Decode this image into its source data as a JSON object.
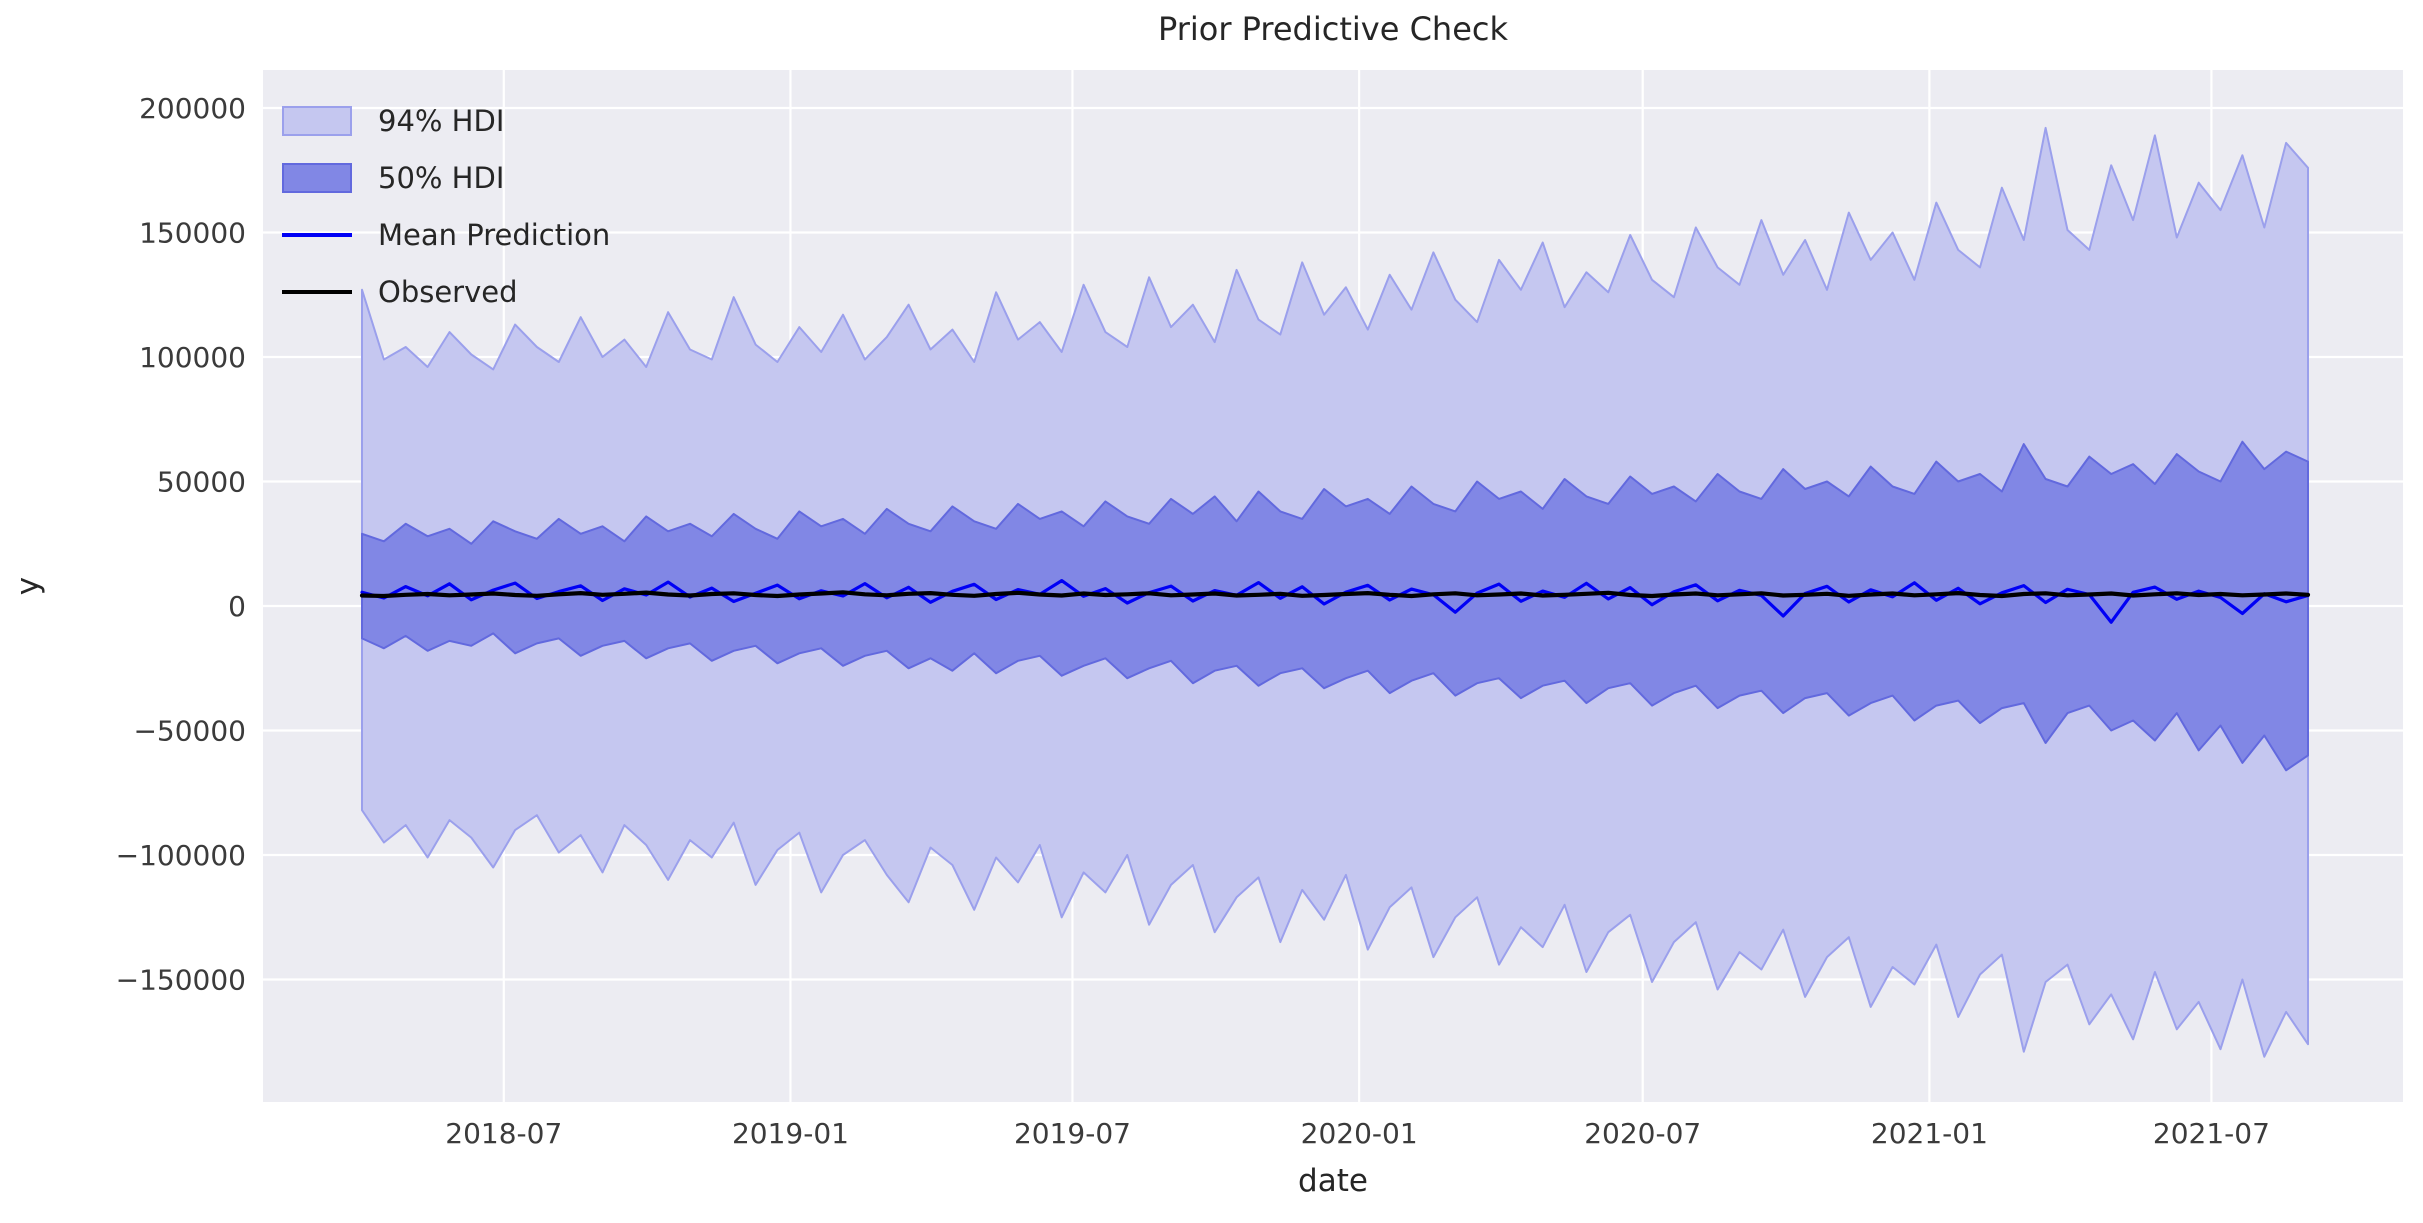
{
  "title": "Prior Predictive Check",
  "axes": {
    "xlabel": "date",
    "ylabel": "y"
  },
  "colors": {
    "figure_bg": "#ffffff",
    "axes_bg": "#ececf2",
    "grid": "#ffffff",
    "hdi94_fill": "#c5c7f0",
    "hdi94_edge": "#9ba0ec",
    "hdi50_fill": "#8187e5",
    "hdi50_edge": "#6269de",
    "mean_line": "#0000f5",
    "observed_line": "#000000",
    "tick_text": "#3b3b3b",
    "label_text": "#262626"
  },
  "legend": {
    "items": [
      {
        "label": "94% HDI",
        "type": "patch",
        "fill": "#c5c7f0",
        "edge": "#9ba0ec"
      },
      {
        "label": "50% HDI",
        "type": "patch",
        "fill": "#8187e5",
        "edge": "#6269de"
      },
      {
        "label": "Mean Prediction",
        "type": "line",
        "color": "#0000f5"
      },
      {
        "label": "Observed",
        "type": "line",
        "color": "#000000"
      }
    ]
  },
  "chart_data": {
    "type": "area",
    "title": "Prior Predictive Check",
    "xlabel": "date",
    "ylabel": "y",
    "grid": true,
    "legend_position": "upper left",
    "x_start": "2018-04-01",
    "x_end": "2021-09-01",
    "x_total_days": 1249,
    "n_points": 90,
    "ylim": [
      -199000,
      215000
    ],
    "yticks": [
      {
        "label": "200000",
        "value": 200000
      },
      {
        "label": "150000",
        "value": 150000
      },
      {
        "label": "100000",
        "value": 100000
      },
      {
        "label": "50000",
        "value": 50000
      },
      {
        "label": "0",
        "value": 0
      },
      {
        "label": "−50000",
        "value": -50000
      },
      {
        "label": "−100000",
        "value": -100000
      },
      {
        "label": "−150000",
        "value": -150000
      }
    ],
    "xticks": [
      {
        "label": "2018-07",
        "day": 91
      },
      {
        "label": "2019-01",
        "day": 275
      },
      {
        "label": "2019-07",
        "day": 456
      },
      {
        "label": "2020-01",
        "day": 640
      },
      {
        "label": "2020-07",
        "day": 822
      },
      {
        "label": "2021-01",
        "day": 1006
      },
      {
        "label": "2021-07",
        "day": 1187
      }
    ],
    "series": [
      {
        "name": "hdi_94_upper",
        "values": [
          127000,
          99000,
          104000,
          96000,
          110000,
          101000,
          95000,
          113000,
          104000,
          98000,
          116000,
          100000,
          107000,
          96000,
          118000,
          103000,
          99000,
          124000,
          105000,
          98000,
          112000,
          102000,
          117000,
          99000,
          108000,
          121000,
          103000,
          111000,
          98000,
          126000,
          107000,
          114000,
          102000,
          129000,
          110000,
          104000,
          132000,
          112000,
          121000,
          106000,
          135000,
          115000,
          109000,
          138000,
          117000,
          128000,
          111000,
          133000,
          119000,
          142000,
          123000,
          114000,
          139000,
          127000,
          146000,
          120000,
          134000,
          126000,
          149000,
          131000,
          124000,
          152000,
          136000,
          129000,
          155000,
          133000,
          147000,
          127000,
          158000,
          139000,
          150000,
          131000,
          162000,
          143000,
          136000,
          168000,
          147000,
          192000,
          151000,
          143000,
          177000,
          155000,
          189000,
          148000,
          170000,
          159000,
          181000,
          152000,
          186000,
          176000
        ]
      },
      {
        "name": "hdi_94_lower",
        "values": [
          -82000,
          -95000,
          -88000,
          -101000,
          -86000,
          -93000,
          -105000,
          -90000,
          -84000,
          -99000,
          -92000,
          -107000,
          -88000,
          -96000,
          -110000,
          -94000,
          -101000,
          -87000,
          -112000,
          -98000,
          -91000,
          -115000,
          -100000,
          -94000,
          -108000,
          -119000,
          -97000,
          -104000,
          -122000,
          -101000,
          -111000,
          -96000,
          -125000,
          -107000,
          -115000,
          -100000,
          -128000,
          -112000,
          -104000,
          -131000,
          -117000,
          -109000,
          -135000,
          -114000,
          -126000,
          -108000,
          -138000,
          -121000,
          -113000,
          -141000,
          -125000,
          -117000,
          -144000,
          -129000,
          -137000,
          -120000,
          -147000,
          -131000,
          -124000,
          -151000,
          -135000,
          -127000,
          -154000,
          -139000,
          -146000,
          -130000,
          -157000,
          -141000,
          -133000,
          -161000,
          -145000,
          -152000,
          -136000,
          -165000,
          -148000,
          -140000,
          -179000,
          -151000,
          -144000,
          -168000,
          -156000,
          -174000,
          -147000,
          -170000,
          -159000,
          -178000,
          -150000,
          -181000,
          -163000,
          -176000
        ]
      },
      {
        "name": "hdi_50_upper",
        "values": [
          29000,
          26000,
          33000,
          28000,
          31000,
          25000,
          34000,
          30000,
          27000,
          35000,
          29000,
          32000,
          26000,
          36000,
          30000,
          33000,
          28000,
          37000,
          31000,
          27000,
          38000,
          32000,
          35000,
          29000,
          39000,
          33000,
          30000,
          40000,
          34000,
          31000,
          41000,
          35000,
          38000,
          32000,
          42000,
          36000,
          33000,
          43000,
          37000,
          44000,
          34000,
          46000,
          38000,
          35000,
          47000,
          40000,
          43000,
          37000,
          48000,
          41000,
          38000,
          50000,
          43000,
          46000,
          39000,
          51000,
          44000,
          41000,
          52000,
          45000,
          48000,
          42000,
          53000,
          46000,
          43000,
          55000,
          47000,
          50000,
          44000,
          56000,
          48000,
          45000,
          58000,
          50000,
          53000,
          46000,
          65000,
          51000,
          48000,
          60000,
          53000,
          57000,
          49000,
          61000,
          54000,
          50000,
          66000,
          55000,
          62000,
          58000
        ]
      },
      {
        "name": "hdi_50_lower",
        "values": [
          -13000,
          -17000,
          -12000,
          -18000,
          -14000,
          -16000,
          -11000,
          -19000,
          -15000,
          -13000,
          -20000,
          -16000,
          -14000,
          -21000,
          -17000,
          -15000,
          -22000,
          -18000,
          -16000,
          -23000,
          -19000,
          -17000,
          -24000,
          -20000,
          -18000,
          -25000,
          -21000,
          -26000,
          -19000,
          -27000,
          -22000,
          -20000,
          -28000,
          -24000,
          -21000,
          -29000,
          -25000,
          -22000,
          -31000,
          -26000,
          -24000,
          -32000,
          -27000,
          -25000,
          -33000,
          -29000,
          -26000,
          -35000,
          -30000,
          -27000,
          -36000,
          -31000,
          -29000,
          -37000,
          -32000,
          -30000,
          -39000,
          -33000,
          -31000,
          -40000,
          -35000,
          -32000,
          -41000,
          -36000,
          -34000,
          -43000,
          -37000,
          -35000,
          -44000,
          -39000,
          -36000,
          -46000,
          -40000,
          -38000,
          -47000,
          -41000,
          -39000,
          -55000,
          -43000,
          -40000,
          -50000,
          -46000,
          -54000,
          -43000,
          -58000,
          -48000,
          -63000,
          -52000,
          -66000,
          -60000
        ]
      },
      {
        "name": "mean_prediction",
        "values": [
          5500,
          3200,
          7800,
          4100,
          8900,
          2500,
          6400,
          9200,
          3000,
          5800,
          8100,
          2200,
          6900,
          4400,
          9600,
          3600,
          7200,
          1800,
          5100,
          8400,
          2900,
          6100,
          4000,
          9000,
          3300,
          7500,
          1500,
          5900,
          8700,
          2600,
          6600,
          4700,
          10200,
          3900,
          7000,
          1200,
          5400,
          8000,
          2000,
          6200,
          4300,
          9400,
          3100,
          7700,
          800,
          5600,
          8300,
          2400,
          6800,
          4500,
          -2500,
          5200,
          8800,
          1900,
          6000,
          3500,
          9100,
          2800,
          7400,
          500,
          5700,
          8500,
          2100,
          6300,
          4200,
          -4000,
          5000,
          7900,
          1600,
          6500,
          3700,
          9300,
          2300,
          7100,
          900,
          5300,
          8200,
          1400,
          6700,
          4600,
          -6500,
          5500,
          7600,
          2700,
          6000,
          3400,
          -3000,
          4900,
          1700,
          4200
        ]
      },
      {
        "name": "observed",
        "values": [
          4200,
          4000,
          4500,
          4800,
          4300,
          4600,
          5000,
          4400,
          4100,
          4700,
          5200,
          4500,
          4900,
          5400,
          4600,
          4200,
          4800,
          5100,
          4400,
          4000,
          4600,
          5000,
          5500,
          4700,
          4300,
          4900,
          5200,
          4500,
          4100,
          4800,
          5300,
          4600,
          4200,
          5000,
          4400,
          4700,
          5100,
          4300,
          4600,
          5000,
          4200,
          4500,
          4900,
          4100,
          4400,
          4800,
          5200,
          4500,
          4000,
          4700,
          5100,
          4300,
          4600,
          5000,
          4200,
          4500,
          4900,
          5300,
          4400,
          4000,
          4600,
          5000,
          4300,
          4700,
          5100,
          4200,
          4500,
          4900,
          4100,
          4600,
          5000,
          4300,
          4700,
          5200,
          4400,
          4000,
          4800,
          5100,
          4300,
          4600,
          5000,
          4200,
          4700,
          5100,
          4400,
          4800,
          4300,
          4600,
          5000,
          4500
        ]
      }
    ]
  }
}
